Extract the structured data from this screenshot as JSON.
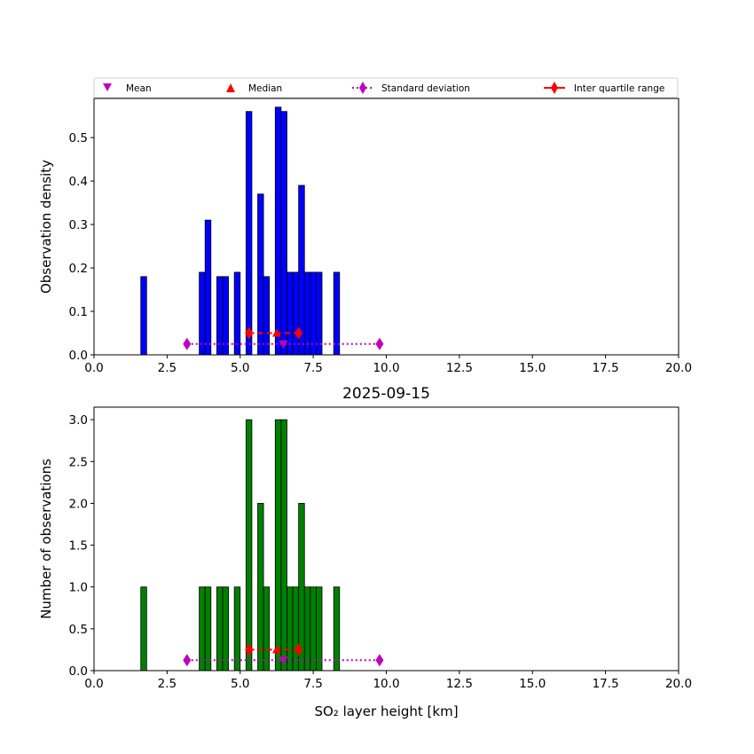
{
  "chart_data": [
    {
      "type": "bar",
      "name": "density-histogram",
      "title": "",
      "xlabel": "",
      "ylabel": "Observation density",
      "xlim": [
        0,
        20
      ],
      "ylim": [
        0,
        0.59
      ],
      "bar_width": 0.2,
      "bar_color": "#0000ff",
      "x_ticks": [
        0,
        2.5,
        5,
        7.5,
        10,
        12.5,
        15,
        17.5,
        20
      ],
      "x_tick_labels": [
        "0.0",
        "2.5",
        "5.0",
        "7.5",
        "10.0",
        "12.5",
        "15.0",
        "17.5",
        "20.0"
      ],
      "y_ticks": [
        0,
        0.1,
        0.2,
        0.3,
        0.4,
        0.5
      ],
      "y_tick_labels": [
        "0.0",
        "0.1",
        "0.2",
        "0.3",
        "0.4",
        "0.5"
      ],
      "bars": [
        {
          "x": 1.6,
          "value": 0.18
        },
        {
          "x": 3.6,
          "value": 0.19
        },
        {
          "x": 3.8,
          "value": 0.31
        },
        {
          "x": 4.2,
          "value": 0.18
        },
        {
          "x": 4.4,
          "value": 0.18
        },
        {
          "x": 4.8,
          "value": 0.19
        },
        {
          "x": 5.2,
          "value": 0.56
        },
        {
          "x": 5.6,
          "value": 0.37
        },
        {
          "x": 5.8,
          "value": 0.18
        },
        {
          "x": 6.2,
          "value": 0.57
        },
        {
          "x": 6.4,
          "value": 0.56
        },
        {
          "x": 6.6,
          "value": 0.19
        },
        {
          "x": 6.8,
          "value": 0.19
        },
        {
          "x": 7.0,
          "value": 0.39
        },
        {
          "x": 7.2,
          "value": 0.19
        },
        {
          "x": 7.4,
          "value": 0.19
        },
        {
          "x": 7.6,
          "value": 0.19
        },
        {
          "x": 8.2,
          "value": 0.19
        }
      ],
      "stats": {
        "mean": {
          "x": 6.48,
          "y": 0.025
        },
        "median": {
          "x": 6.25,
          "y": 0.05
        },
        "std": {
          "x_low": 3.18,
          "x_high": 9.77,
          "y": 0.025
        },
        "iqr": {
          "x_low": 5.3,
          "x_high": 7.0,
          "y": 0.05
        }
      }
    },
    {
      "type": "bar",
      "name": "count-histogram",
      "title": "2025-09-15",
      "xlabel": "SO₂ layer height [km]",
      "ylabel": "Number of observations",
      "xlim": [
        0,
        20
      ],
      "ylim": [
        0,
        3.15
      ],
      "bar_width": 0.2,
      "bar_color": "#008000",
      "x_ticks": [
        0,
        2.5,
        5,
        7.5,
        10,
        12.5,
        15,
        17.5,
        20
      ],
      "x_tick_labels": [
        "0.0",
        "2.5",
        "5.0",
        "7.5",
        "10.0",
        "12.5",
        "15.0",
        "17.5",
        "20.0"
      ],
      "y_ticks": [
        0,
        0.5,
        1,
        1.5,
        2,
        2.5,
        3
      ],
      "y_tick_labels": [
        "0.0",
        "0.5",
        "1.0",
        "1.5",
        "2.0",
        "2.5",
        "3.0"
      ],
      "bars": [
        {
          "x": 1.6,
          "value": 1
        },
        {
          "x": 3.6,
          "value": 1
        },
        {
          "x": 3.8,
          "value": 1
        },
        {
          "x": 4.2,
          "value": 1
        },
        {
          "x": 4.4,
          "value": 1
        },
        {
          "x": 4.8,
          "value": 1
        },
        {
          "x": 5.2,
          "value": 3
        },
        {
          "x": 5.6,
          "value": 2
        },
        {
          "x": 5.8,
          "value": 1
        },
        {
          "x": 6.2,
          "value": 3
        },
        {
          "x": 6.4,
          "value": 3
        },
        {
          "x": 6.6,
          "value": 1
        },
        {
          "x": 6.8,
          "value": 1
        },
        {
          "x": 7.0,
          "value": 2
        },
        {
          "x": 7.2,
          "value": 1
        },
        {
          "x": 7.4,
          "value": 1
        },
        {
          "x": 7.6,
          "value": 1
        },
        {
          "x": 8.2,
          "value": 1
        }
      ],
      "stats": {
        "mean": {
          "x": 6.48,
          "y": 0.125
        },
        "median": {
          "x": 6.25,
          "y": 0.25
        },
        "std": {
          "x_low": 3.18,
          "x_high": 9.77,
          "y": 0.125
        },
        "iqr": {
          "x_low": 5.3,
          "x_high": 7.0,
          "y": 0.25
        }
      }
    }
  ],
  "legend": {
    "placement": "above-top-axes",
    "entries": [
      {
        "key": "mean",
        "label": "Mean",
        "color": "#bf00bf",
        "marker": "triangle-down"
      },
      {
        "key": "median",
        "label": "Median",
        "color": "#ff0000",
        "marker": "triangle-up"
      },
      {
        "key": "std",
        "label": "Standard deviation",
        "color": "#bf00bf",
        "marker": "diamond",
        "line": "dotted"
      },
      {
        "key": "iqr",
        "label": "Inter quartile range",
        "color": "#ff0000",
        "marker": "diamond",
        "line": "dashed"
      }
    ]
  },
  "colors": {
    "mean": "#bf00bf",
    "median": "#ff0000",
    "std": "#bf00bf",
    "iqr": "#ff0000"
  }
}
